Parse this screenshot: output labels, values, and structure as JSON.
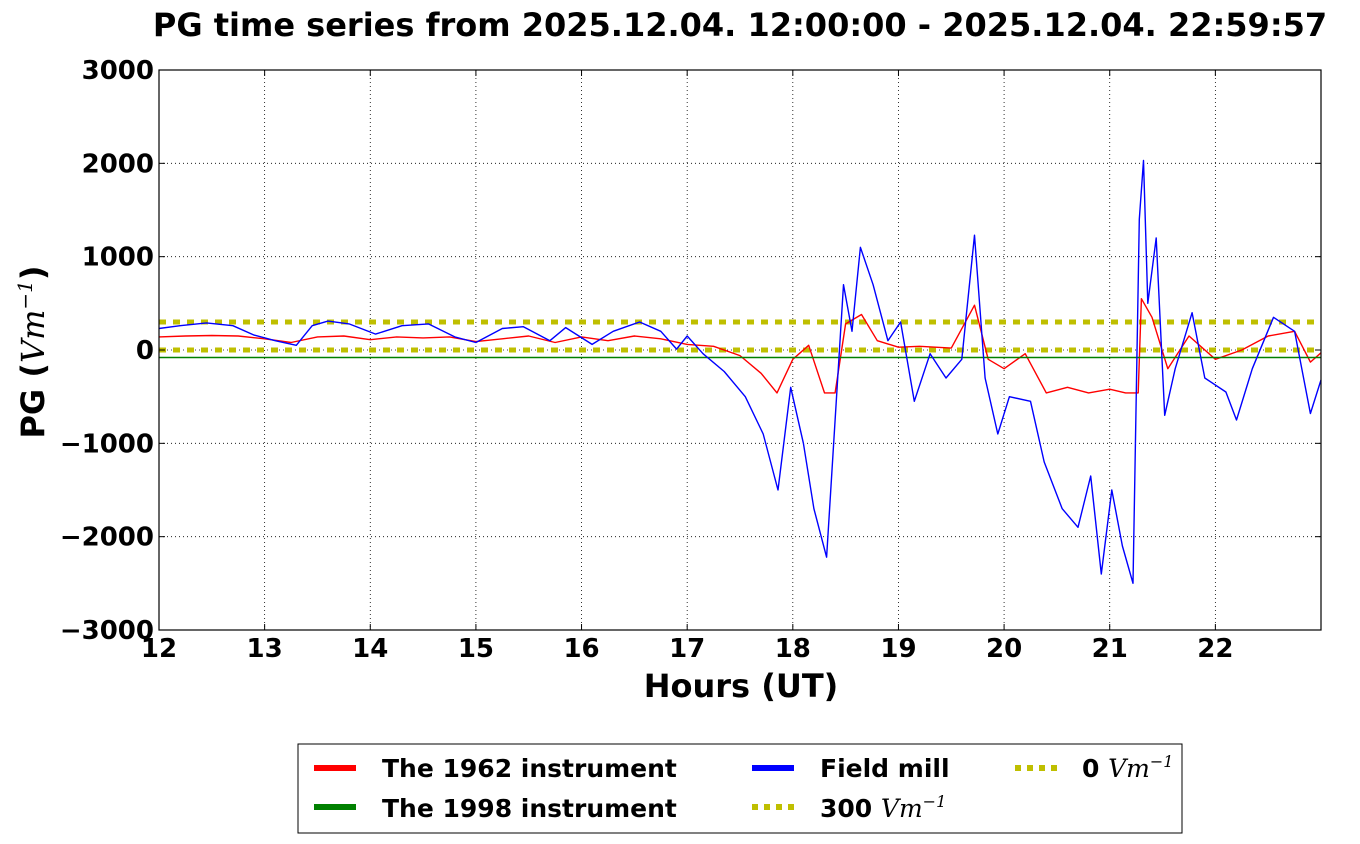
{
  "chart_data": {
    "type": "line",
    "title": "PG time series from 2025.12.04. 12:00:00 - 2025.12.04. 22:59:57",
    "xlabel": "Hours (UT)",
    "ylabel": "PG (",
    "ylabel_unit": "Vm",
    "ylabel_unit_exp": "−1",
    "ylabel_close": ")",
    "xlim": [
      12,
      23
    ],
    "ylim": [
      -3000,
      3000
    ],
    "x_ticks": [
      12,
      13,
      14,
      15,
      16,
      17,
      18,
      19,
      20,
      21,
      22
    ],
    "y_ticks": [
      -3000,
      -2000,
      -1000,
      0,
      1000,
      2000,
      3000
    ],
    "x_tick_labels": [
      "12",
      "13",
      "14",
      "15",
      "16",
      "17",
      "18",
      "19",
      "20",
      "21",
      "22"
    ],
    "y_tick_labels": [
      "−3000",
      "−2000",
      "−1000",
      "0",
      "1000",
      "2000",
      "3000"
    ],
    "grid": true,
    "legend_position": "bottom-center",
    "series": [
      {
        "name": "The 1962 instrument",
        "color": "#ff0000",
        "points": [
          [
            12,
            140
          ],
          [
            12.25,
            150
          ],
          [
            12.5,
            155
          ],
          [
            12.75,
            150
          ],
          [
            13,
            120
          ],
          [
            13.25,
            80
          ],
          [
            13.5,
            140
          ],
          [
            13.75,
            150
          ],
          [
            14,
            110
          ],
          [
            14.25,
            140
          ],
          [
            14.5,
            130
          ],
          [
            14.75,
            140
          ],
          [
            15,
            90
          ],
          [
            15.25,
            120
          ],
          [
            15.5,
            150
          ],
          [
            15.75,
            80
          ],
          [
            16,
            140
          ],
          [
            16.25,
            100
          ],
          [
            16.5,
            150
          ],
          [
            16.75,
            120
          ],
          [
            17,
            60
          ],
          [
            17.25,
            40
          ],
          [
            17.5,
            -60
          ],
          [
            17.7,
            -250
          ],
          [
            17.85,
            -460
          ],
          [
            18,
            -100
          ],
          [
            18.15,
            50
          ],
          [
            18.3,
            -460
          ],
          [
            18.4,
            -460
          ],
          [
            18.5,
            280
          ],
          [
            18.65,
            380
          ],
          [
            18.8,
            100
          ],
          [
            19,
            30
          ],
          [
            19.2,
            40
          ],
          [
            19.5,
            20
          ],
          [
            19.72,
            480
          ],
          [
            19.85,
            -100
          ],
          [
            20,
            -200
          ],
          [
            20.2,
            -40
          ],
          [
            20.4,
            -460
          ],
          [
            20.6,
            -400
          ],
          [
            20.8,
            -460
          ],
          [
            21,
            -420
          ],
          [
            21.15,
            -460
          ],
          [
            21.27,
            -460
          ],
          [
            21.3,
            550
          ],
          [
            21.4,
            350
          ],
          [
            21.55,
            -200
          ],
          [
            21.75,
            150
          ],
          [
            22,
            -100
          ],
          [
            22.25,
            0
          ],
          [
            22.5,
            150
          ],
          [
            22.75,
            200
          ],
          [
            22.9,
            -130
          ],
          [
            23,
            -30
          ]
        ]
      },
      {
        "name": "The 1998 instrument",
        "color": "#008000",
        "points": [
          [
            12,
            -80
          ],
          [
            23,
            -80
          ]
        ]
      },
      {
        "name": "Field mill",
        "color": "#0000ff",
        "points": [
          [
            12,
            230
          ],
          [
            12.2,
            260
          ],
          [
            12.45,
            290
          ],
          [
            12.7,
            260
          ],
          [
            12.9,
            160
          ],
          [
            13.1,
            100
          ],
          [
            13.3,
            50
          ],
          [
            13.45,
            260
          ],
          [
            13.6,
            310
          ],
          [
            13.8,
            280
          ],
          [
            14.05,
            170
          ],
          [
            14.3,
            260
          ],
          [
            14.55,
            280
          ],
          [
            14.8,
            140
          ],
          [
            15,
            80
          ],
          [
            15.25,
            230
          ],
          [
            15.45,
            250
          ],
          [
            15.7,
            100
          ],
          [
            15.85,
            240
          ],
          [
            16.1,
            60
          ],
          [
            16.3,
            200
          ],
          [
            16.55,
            300
          ],
          [
            16.75,
            200
          ],
          [
            16.9,
            10
          ],
          [
            17.0,
            150
          ],
          [
            17.15,
            -40
          ],
          [
            17.35,
            -230
          ],
          [
            17.55,
            -500
          ],
          [
            17.72,
            -900
          ],
          [
            17.86,
            -1500
          ],
          [
            17.98,
            -400
          ],
          [
            18.1,
            -1000
          ],
          [
            18.2,
            -1700
          ],
          [
            18.32,
            -2220
          ],
          [
            18.48,
            700
          ],
          [
            18.56,
            200
          ],
          [
            18.64,
            1100
          ],
          [
            18.76,
            700
          ],
          [
            18.9,
            100
          ],
          [
            19.02,
            300
          ],
          [
            19.15,
            -550
          ],
          [
            19.3,
            -40
          ],
          [
            19.45,
            -300
          ],
          [
            19.6,
            -100
          ],
          [
            19.72,
            1230
          ],
          [
            19.82,
            -300
          ],
          [
            19.94,
            -900
          ],
          [
            20.05,
            -500
          ],
          [
            20.25,
            -550
          ],
          [
            20.38,
            -1200
          ],
          [
            20.55,
            -1700
          ],
          [
            20.7,
            -1900
          ],
          [
            20.82,
            -1350
          ],
          [
            20.92,
            -2400
          ],
          [
            21.02,
            -1500
          ],
          [
            21.12,
            -2100
          ],
          [
            21.22,
            -2500
          ],
          [
            21.28,
            1400
          ],
          [
            21.32,
            2030
          ],
          [
            21.36,
            500
          ],
          [
            21.44,
            1200
          ],
          [
            21.52,
            -700
          ],
          [
            21.62,
            -200
          ],
          [
            21.78,
            400
          ],
          [
            21.9,
            -300
          ],
          [
            22.1,
            -450
          ],
          [
            22.2,
            -750
          ],
          [
            22.35,
            -200
          ],
          [
            22.55,
            350
          ],
          [
            22.75,
            200
          ],
          [
            22.9,
            -680
          ],
          [
            23,
            -320
          ]
        ]
      }
    ],
    "reference_lines": [
      {
        "name": "300",
        "unit": "Vm",
        "unit_exp": "−1",
        "value": 300,
        "color": "#bfbf00",
        "style": "dotted"
      },
      {
        "name": "0",
        "unit": "Vm",
        "unit_exp": "−1",
        "value": 0,
        "color": "#bfbf00",
        "style": "dotted"
      }
    ]
  }
}
